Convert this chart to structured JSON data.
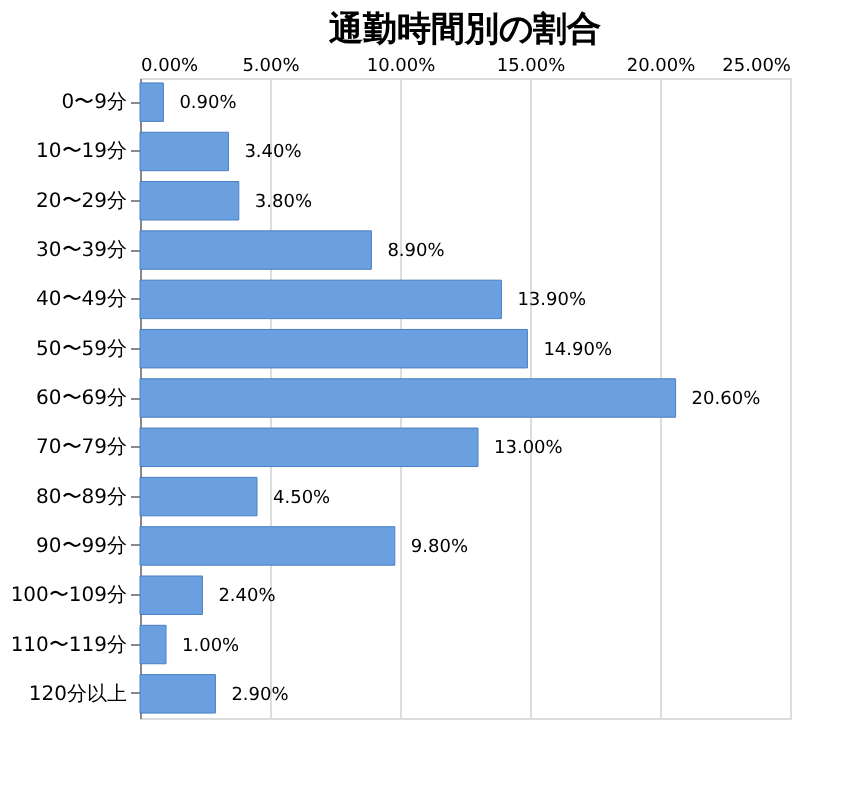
{
  "chart_data": {
    "type": "bar",
    "orientation": "horizontal",
    "title": "通勤時間別の割合",
    "categories": [
      "0〜9分",
      "10〜19分",
      "20〜29分",
      "30〜39分",
      "40〜49分",
      "50〜59分",
      "60〜69分",
      "70〜79分",
      "80〜89分",
      "90〜99分",
      "100〜109分",
      "110〜119分",
      "120分以上"
    ],
    "values": [
      0.9,
      3.4,
      3.8,
      8.9,
      13.9,
      14.9,
      20.6,
      13.0,
      4.5,
      9.8,
      2.4,
      1.0,
      2.9
    ],
    "value_labels": [
      "0.90%",
      "3.40%",
      "3.80%",
      "8.90%",
      "13.90%",
      "14.90%",
      "20.60%",
      "13.00%",
      "4.50%",
      "9.80%",
      "2.40%",
      "1.00%",
      "2.90%"
    ],
    "color": "#6a9fe0",
    "xlim": [
      0,
      25
    ],
    "xticks": [
      {
        "value": 0,
        "label": "0.00%"
      },
      {
        "value": 5,
        "label": "5.00%"
      },
      {
        "value": 10,
        "label": "10.00%"
      },
      {
        "value": 15,
        "label": "15.00%"
      },
      {
        "value": 20,
        "label": "20.00%"
      },
      {
        "value": 25,
        "label": "25.00%"
      }
    ],
    "grid": "x"
  }
}
